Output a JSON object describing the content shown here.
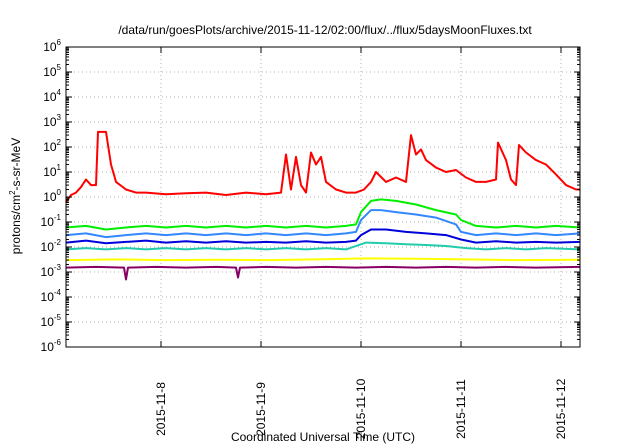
{
  "chart_data": {
    "type": "line",
    "title": "/data/run/goesPlots/archive/2015-11-12/02:00/flux/../flux/5daysMoonFluxes.txt",
    "xlabel": "Coordinated Universal Time (UTC)",
    "ylabel": "protons/cm²-s-sr-MeV",
    "ylabel_parts": {
      "pre": "protons/cm",
      "sup": "2",
      "post": "-s-sr-MeV"
    },
    "y_scale": "log",
    "ylim": [
      1e-06,
      1000000.0
    ],
    "y_ticks": [
      {
        "exp": "-6"
      },
      {
        "exp": "-5"
      },
      {
        "exp": "-4"
      },
      {
        "exp": "-3"
      },
      {
        "exp": "-2"
      },
      {
        "exp": "-1"
      },
      {
        "exp": "0"
      },
      {
        "exp": "1"
      },
      {
        "exp": "2"
      },
      {
        "exp": "3"
      },
      {
        "exp": "4"
      },
      {
        "exp": "5"
      },
      {
        "exp": "6"
      }
    ],
    "y_tick_base": "10",
    "xlim": [
      0,
      5.14
    ],
    "x_ticks": [
      {
        "value": 0.95,
        "label": "2015-11-8"
      },
      {
        "value": 1.95,
        "label": "2015-11-9"
      },
      {
        "value": 2.95,
        "label": "2015-11-10"
      },
      {
        "value": 3.95,
        "label": "2015-11-11"
      },
      {
        "value": 4.95,
        "label": "2015-11-12"
      }
    ],
    "grid": true,
    "series": [
      {
        "color": "#ff0000",
        "points": [
          [
            0,
            0.6
          ],
          [
            0.05,
            1.2
          ],
          [
            0.1,
            1.5
          ],
          [
            0.15,
            2.5
          ],
          [
            0.2,
            5
          ],
          [
            0.25,
            3
          ],
          [
            0.3,
            3
          ],
          [
            0.32,
            400
          ],
          [
            0.4,
            400
          ],
          [
            0.45,
            20
          ],
          [
            0.5,
            4
          ],
          [
            0.6,
            2
          ],
          [
            0.7,
            1.5
          ],
          [
            0.8,
            1.5
          ],
          [
            1.0,
            1.3
          ],
          [
            1.2,
            1.4
          ],
          [
            1.4,
            1.5
          ],
          [
            1.6,
            1.2
          ],
          [
            1.8,
            1.5
          ],
          [
            2.0,
            1.3
          ],
          [
            2.15,
            1.5
          ],
          [
            2.2,
            50
          ],
          [
            2.25,
            2
          ],
          [
            2.3,
            40
          ],
          [
            2.35,
            3
          ],
          [
            2.4,
            1.5
          ],
          [
            2.45,
            60
          ],
          [
            2.5,
            20
          ],
          [
            2.55,
            40
          ],
          [
            2.6,
            4
          ],
          [
            2.7,
            2
          ],
          [
            2.8,
            1.5
          ],
          [
            2.9,
            1.5
          ],
          [
            2.98,
            2
          ],
          [
            3.05,
            4
          ],
          [
            3.1,
            10
          ],
          [
            3.2,
            4
          ],
          [
            3.3,
            6
          ],
          [
            3.4,
            4
          ],
          [
            3.45,
            300
          ],
          [
            3.5,
            50
          ],
          [
            3.55,
            80
          ],
          [
            3.6,
            30
          ],
          [
            3.7,
            15
          ],
          [
            3.8,
            10
          ],
          [
            3.9,
            12
          ],
          [
            4.0,
            6
          ],
          [
            4.1,
            4
          ],
          [
            4.2,
            4
          ],
          [
            4.3,
            5
          ],
          [
            4.32,
            150
          ],
          [
            4.4,
            30
          ],
          [
            4.45,
            5
          ],
          [
            4.5,
            3
          ],
          [
            4.53,
            120
          ],
          [
            4.6,
            60
          ],
          [
            4.7,
            30
          ],
          [
            4.8,
            20
          ],
          [
            4.9,
            8
          ],
          [
            5.0,
            3
          ],
          [
            5.1,
            2
          ],
          [
            5.14,
            2
          ]
        ]
      },
      {
        "color": "#00ee00",
        "points": [
          [
            0,
            0.06
          ],
          [
            0.2,
            0.07
          ],
          [
            0.4,
            0.05
          ],
          [
            0.6,
            0.06
          ],
          [
            0.8,
            0.07
          ],
          [
            1.0,
            0.06
          ],
          [
            1.2,
            0.07
          ],
          [
            1.4,
            0.06
          ],
          [
            1.6,
            0.07
          ],
          [
            1.8,
            0.06
          ],
          [
            2.0,
            0.07
          ],
          [
            2.2,
            0.06
          ],
          [
            2.4,
            0.07
          ],
          [
            2.6,
            0.06
          ],
          [
            2.8,
            0.07
          ],
          [
            2.9,
            0.08
          ],
          [
            2.95,
            0.25
          ],
          [
            3.05,
            0.7
          ],
          [
            3.15,
            0.8
          ],
          [
            3.3,
            0.7
          ],
          [
            3.5,
            0.5
          ],
          [
            3.7,
            0.3
          ],
          [
            3.9,
            0.2
          ],
          [
            3.95,
            0.12
          ],
          [
            4.1,
            0.07
          ],
          [
            4.3,
            0.06
          ],
          [
            4.5,
            0.07
          ],
          [
            4.7,
            0.06
          ],
          [
            4.9,
            0.07
          ],
          [
            5.14,
            0.06
          ]
        ]
      },
      {
        "color": "#3388ff",
        "points": [
          [
            0,
            0.03
          ],
          [
            0.2,
            0.035
          ],
          [
            0.4,
            0.025
          ],
          [
            0.6,
            0.03
          ],
          [
            0.8,
            0.035
          ],
          [
            1.0,
            0.03
          ],
          [
            1.2,
            0.035
          ],
          [
            1.4,
            0.03
          ],
          [
            1.6,
            0.035
          ],
          [
            1.8,
            0.03
          ],
          [
            2.0,
            0.035
          ],
          [
            2.2,
            0.03
          ],
          [
            2.4,
            0.035
          ],
          [
            2.6,
            0.03
          ],
          [
            2.8,
            0.035
          ],
          [
            2.9,
            0.04
          ],
          [
            2.95,
            0.12
          ],
          [
            3.05,
            0.3
          ],
          [
            3.15,
            0.3
          ],
          [
            3.3,
            0.25
          ],
          [
            3.5,
            0.2
          ],
          [
            3.7,
            0.15
          ],
          [
            3.9,
            0.08
          ],
          [
            3.95,
            0.04
          ],
          [
            4.1,
            0.03
          ],
          [
            4.3,
            0.035
          ],
          [
            4.5,
            0.03
          ],
          [
            4.7,
            0.035
          ],
          [
            4.9,
            0.03
          ],
          [
            5.14,
            0.035
          ]
        ]
      },
      {
        "color": "#0000dd",
        "points": [
          [
            0,
            0.015
          ],
          [
            0.2,
            0.018
          ],
          [
            0.4,
            0.014
          ],
          [
            0.6,
            0.016
          ],
          [
            0.8,
            0.018
          ],
          [
            1.0,
            0.015
          ],
          [
            1.2,
            0.017
          ],
          [
            1.4,
            0.015
          ],
          [
            1.6,
            0.017
          ],
          [
            1.8,
            0.015
          ],
          [
            2.0,
            0.016
          ],
          [
            2.2,
            0.015
          ],
          [
            2.4,
            0.017
          ],
          [
            2.6,
            0.015
          ],
          [
            2.8,
            0.016
          ],
          [
            2.9,
            0.018
          ],
          [
            2.95,
            0.03
          ],
          [
            3.05,
            0.05
          ],
          [
            3.2,
            0.05
          ],
          [
            3.4,
            0.04
          ],
          [
            3.6,
            0.035
          ],
          [
            3.8,
            0.03
          ],
          [
            3.95,
            0.02
          ],
          [
            4.1,
            0.015
          ],
          [
            4.3,
            0.017
          ],
          [
            4.5,
            0.015
          ],
          [
            4.7,
            0.016
          ],
          [
            4.9,
            0.015
          ],
          [
            5.14,
            0.016
          ]
        ]
      },
      {
        "color": "#22ccaa",
        "points": [
          [
            0,
            0.008
          ],
          [
            0.2,
            0.009
          ],
          [
            0.4,
            0.008
          ],
          [
            0.6,
            0.009
          ],
          [
            0.8,
            0.008
          ],
          [
            1.0,
            0.009
          ],
          [
            1.2,
            0.008
          ],
          [
            1.4,
            0.009
          ],
          [
            1.6,
            0.008
          ],
          [
            1.8,
            0.009
          ],
          [
            2.0,
            0.008
          ],
          [
            2.2,
            0.009
          ],
          [
            2.4,
            0.008
          ],
          [
            2.6,
            0.009
          ],
          [
            2.8,
            0.008
          ],
          [
            3.0,
            0.015
          ],
          [
            3.2,
            0.014
          ],
          [
            3.4,
            0.013
          ],
          [
            3.6,
            0.012
          ],
          [
            3.8,
            0.011
          ],
          [
            4.0,
            0.009
          ],
          [
            4.2,
            0.008
          ],
          [
            4.4,
            0.009
          ],
          [
            4.6,
            0.008
          ],
          [
            4.8,
            0.009
          ],
          [
            5.14,
            0.008
          ]
        ]
      },
      {
        "color": "#ffff00",
        "points": [
          [
            0,
            0.003
          ],
          [
            0.5,
            0.0032
          ],
          [
            1.0,
            0.003
          ],
          [
            1.5,
            0.0031
          ],
          [
            2.0,
            0.003
          ],
          [
            2.5,
            0.0032
          ],
          [
            3.0,
            0.0035
          ],
          [
            3.5,
            0.0034
          ],
          [
            4.0,
            0.0032
          ],
          [
            4.5,
            0.003
          ],
          [
            5.14,
            0.0031
          ]
        ]
      },
      {
        "color": "#880066",
        "points": [
          [
            0,
            0.0015
          ],
          [
            0.3,
            0.0016
          ],
          [
            0.58,
            0.0015
          ],
          [
            0.6,
            0.0005
          ],
          [
            0.62,
            0.0015
          ],
          [
            0.9,
            0.0016
          ],
          [
            1.2,
            0.0015
          ],
          [
            1.5,
            0.0016
          ],
          [
            1.7,
            0.0015
          ],
          [
            1.72,
            0.0006
          ],
          [
            1.74,
            0.0015
          ],
          [
            2.0,
            0.0016
          ],
          [
            2.3,
            0.0015
          ],
          [
            2.6,
            0.0016
          ],
          [
            2.9,
            0.0015
          ],
          [
            3.2,
            0.0016
          ],
          [
            3.5,
            0.0015
          ],
          [
            3.8,
            0.0016
          ],
          [
            4.1,
            0.0015
          ],
          [
            4.4,
            0.0016
          ],
          [
            4.7,
            0.0015
          ],
          [
            5.14,
            0.0016
          ]
        ]
      }
    ]
  }
}
